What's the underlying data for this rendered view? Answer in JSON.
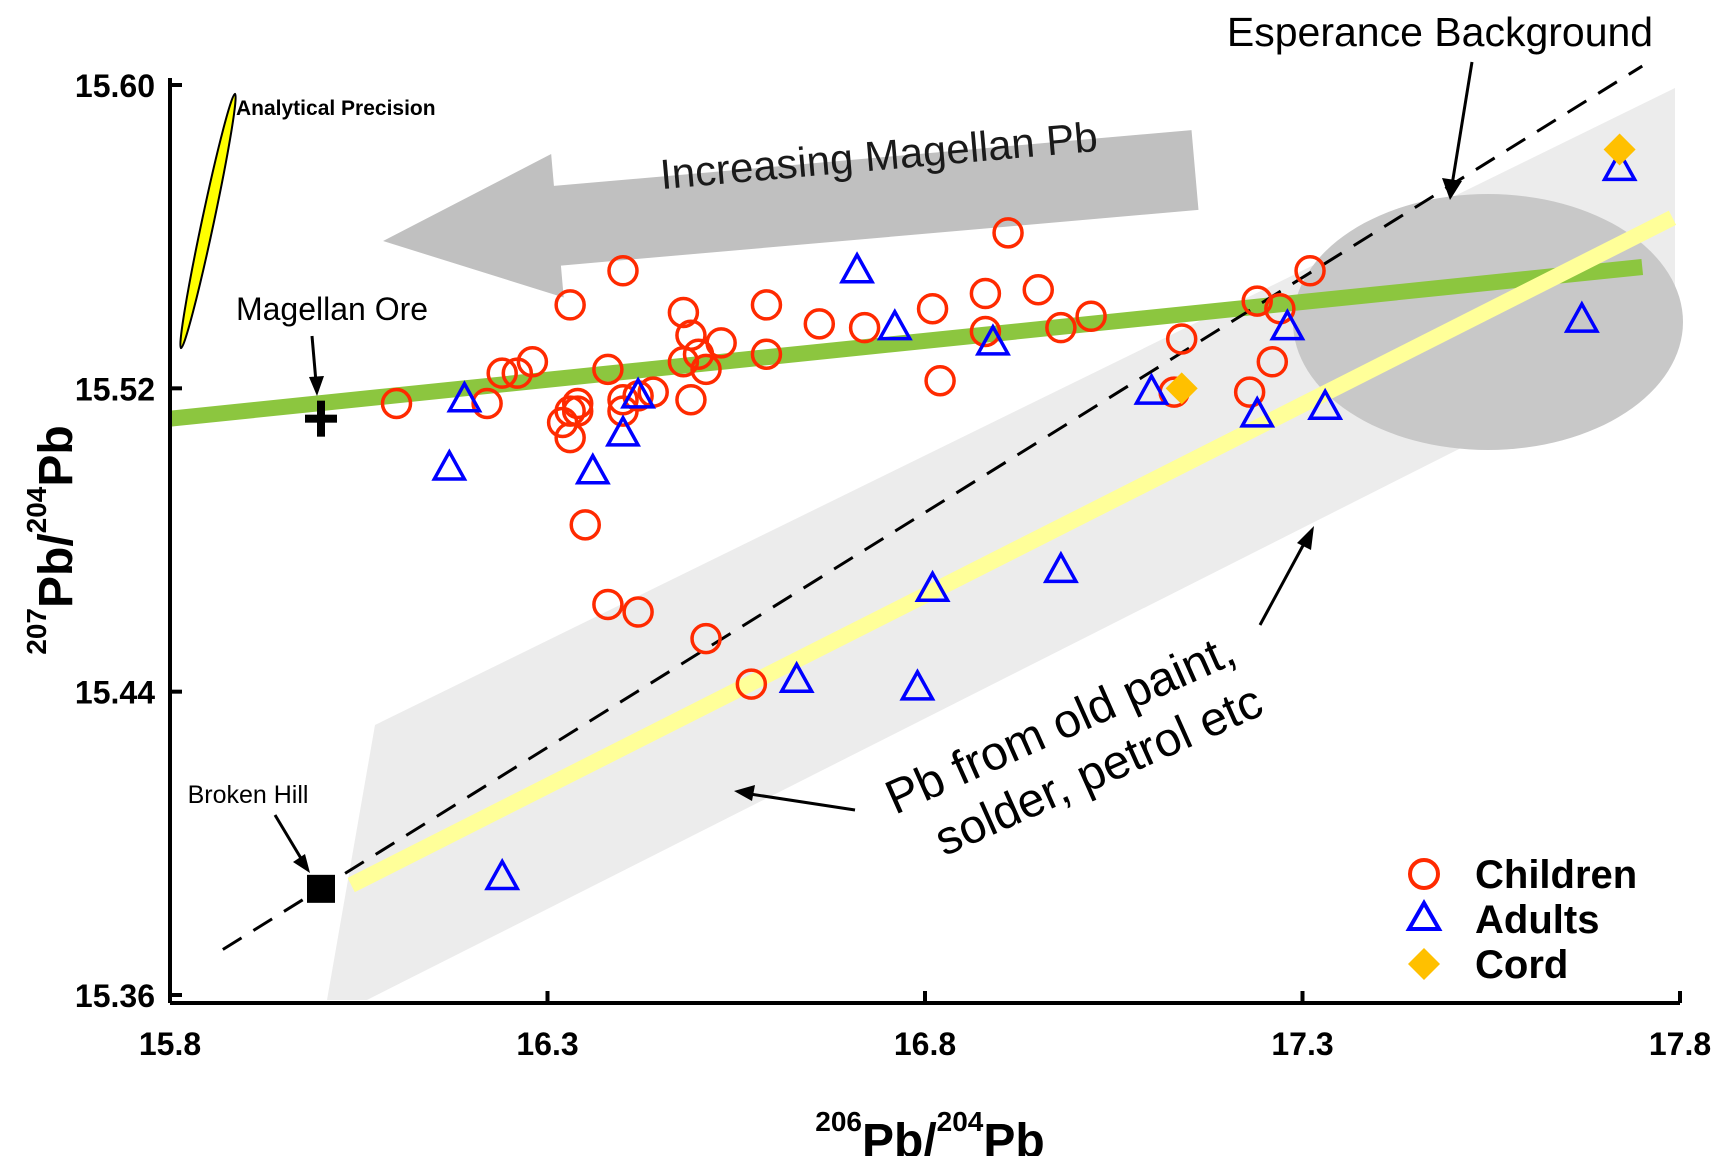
{
  "chart_data": {
    "type": "scatter",
    "xlabel_sup1": "206",
    "xlabel_mid": "Pb/",
    "xlabel_sup2": "204",
    "xlabel_end": "Pb",
    "ylabel_sup1": "207",
    "ylabel_mid": "Pb/",
    "ylabel_sup2": "204",
    "ylabel_end": "Pb",
    "xlim": [
      15.8,
      17.8
    ],
    "ylim": [
      15.36,
      15.6
    ],
    "xticks": [
      "15.8",
      "16.3",
      "16.8",
      "17.3",
      "17.8"
    ],
    "yticks": [
      "15.60",
      "15.52",
      "15.44",
      "15.36"
    ],
    "xtick_values": [
      15.8,
      16.3,
      16.8,
      17.3,
      17.8
    ],
    "ytick_values": [
      15.6,
      15.52,
      15.44,
      15.36
    ],
    "legend_position": "bottom-right",
    "colors": {
      "children": "#ff2a00",
      "adults": "#0000ff",
      "cord": "#ffc000",
      "magellan_trend": "#8cc63f",
      "background_trend": "#ffff99",
      "arrow_fill": "#c0c0c0",
      "esperance_fill": "#c8c8c8",
      "band_fill": "#ececec"
    },
    "series": [
      {
        "name": "Children",
        "marker": "circle",
        "points": [
          [
            16.1,
            15.516
          ],
          [
            16.22,
            15.516
          ],
          [
            16.24,
            15.524
          ],
          [
            16.26,
            15.524
          ],
          [
            16.28,
            15.527
          ],
          [
            16.32,
            15.511
          ],
          [
            16.33,
            15.507
          ],
          [
            16.33,
            15.514
          ],
          [
            16.34,
            15.516
          ],
          [
            16.34,
            15.514
          ],
          [
            16.33,
            15.542
          ],
          [
            16.38,
            15.525
          ],
          [
            16.4,
            15.551
          ],
          [
            16.4,
            15.514
          ],
          [
            16.4,
            15.517
          ],
          [
            16.42,
            15.518
          ],
          [
            16.44,
            15.519
          ],
          [
            16.48,
            15.54
          ],
          [
            16.48,
            15.527
          ],
          [
            16.49,
            15.534
          ],
          [
            16.49,
            15.517
          ],
          [
            16.5,
            15.529
          ],
          [
            16.51,
            15.525
          ],
          [
            16.53,
            15.532
          ],
          [
            16.59,
            15.542
          ],
          [
            16.59,
            15.529
          ],
          [
            16.66,
            15.537
          ],
          [
            16.72,
            15.536
          ],
          [
            16.81,
            15.541
          ],
          [
            16.82,
            15.522
          ],
          [
            16.88,
            15.545
          ],
          [
            16.88,
            15.535
          ],
          [
            16.91,
            15.561
          ],
          [
            16.95,
            15.546
          ],
          [
            16.98,
            15.536
          ],
          [
            17.02,
            15.539
          ],
          [
            17.13,
            15.519
          ],
          [
            17.14,
            15.533
          ],
          [
            17.23,
            15.519
          ],
          [
            17.24,
            15.543
          ],
          [
            17.26,
            15.527
          ],
          [
            17.27,
            15.541
          ],
          [
            17.31,
            15.551
          ],
          [
            16.35,
            15.484
          ],
          [
            16.38,
            15.463
          ],
          [
            16.42,
            15.461
          ],
          [
            16.51,
            15.454
          ],
          [
            16.57,
            15.442
          ]
        ]
      },
      {
        "name": "Adults",
        "marker": "triangle",
        "points": [
          [
            16.19,
            15.517
          ],
          [
            16.17,
            15.499
          ],
          [
            16.24,
            15.391
          ],
          [
            16.36,
            15.498
          ],
          [
            16.4,
            15.508
          ],
          [
            16.42,
            15.518
          ],
          [
            16.63,
            15.443
          ],
          [
            16.71,
            15.551
          ],
          [
            16.76,
            15.536
          ],
          [
            16.79,
            15.441
          ],
          [
            16.81,
            15.467
          ],
          [
            16.89,
            15.532
          ],
          [
            16.98,
            15.472
          ],
          [
            17.1,
            15.519
          ],
          [
            17.24,
            15.513
          ],
          [
            17.28,
            15.536
          ],
          [
            17.33,
            15.515
          ],
          [
            17.67,
            15.538
          ],
          [
            17.72,
            15.578
          ]
        ]
      },
      {
        "name": "Cord",
        "marker": "diamond",
        "points": [
          [
            17.14,
            15.52
          ],
          [
            17.72,
            15.583
          ]
        ]
      }
    ],
    "reference_points": [
      {
        "label": "Magellan Ore",
        "marker": "cross",
        "point": [
          16.0,
          15.512
        ]
      },
      {
        "label": "Broken Hill",
        "marker": "square",
        "point": [
          16.0,
          15.388
        ]
      }
    ],
    "trend_lines": [
      {
        "name": "Magellan trend",
        "from": [
          15.8,
          15.512
        ],
        "to": [
          17.75,
          15.552
        ]
      },
      {
        "name": "Background trend",
        "from": [
          16.04,
          15.389
        ],
        "to": [
          17.79,
          15.565
        ]
      },
      {
        "name": "Dashed reference",
        "from": [
          15.87,
          15.372
        ],
        "to": [
          17.75,
          15.605
        ]
      }
    ],
    "annotations": {
      "esperance": "Esperance Background",
      "increasing": "Increasing Magellan Pb",
      "analytical": "Analytical Precision",
      "magellan_ore": "Magellan Ore",
      "broken_hill": "Broken Hill",
      "pb_sources_line1": "Pb from old paint,",
      "pb_sources_line2": "solder, petrol etc"
    }
  }
}
